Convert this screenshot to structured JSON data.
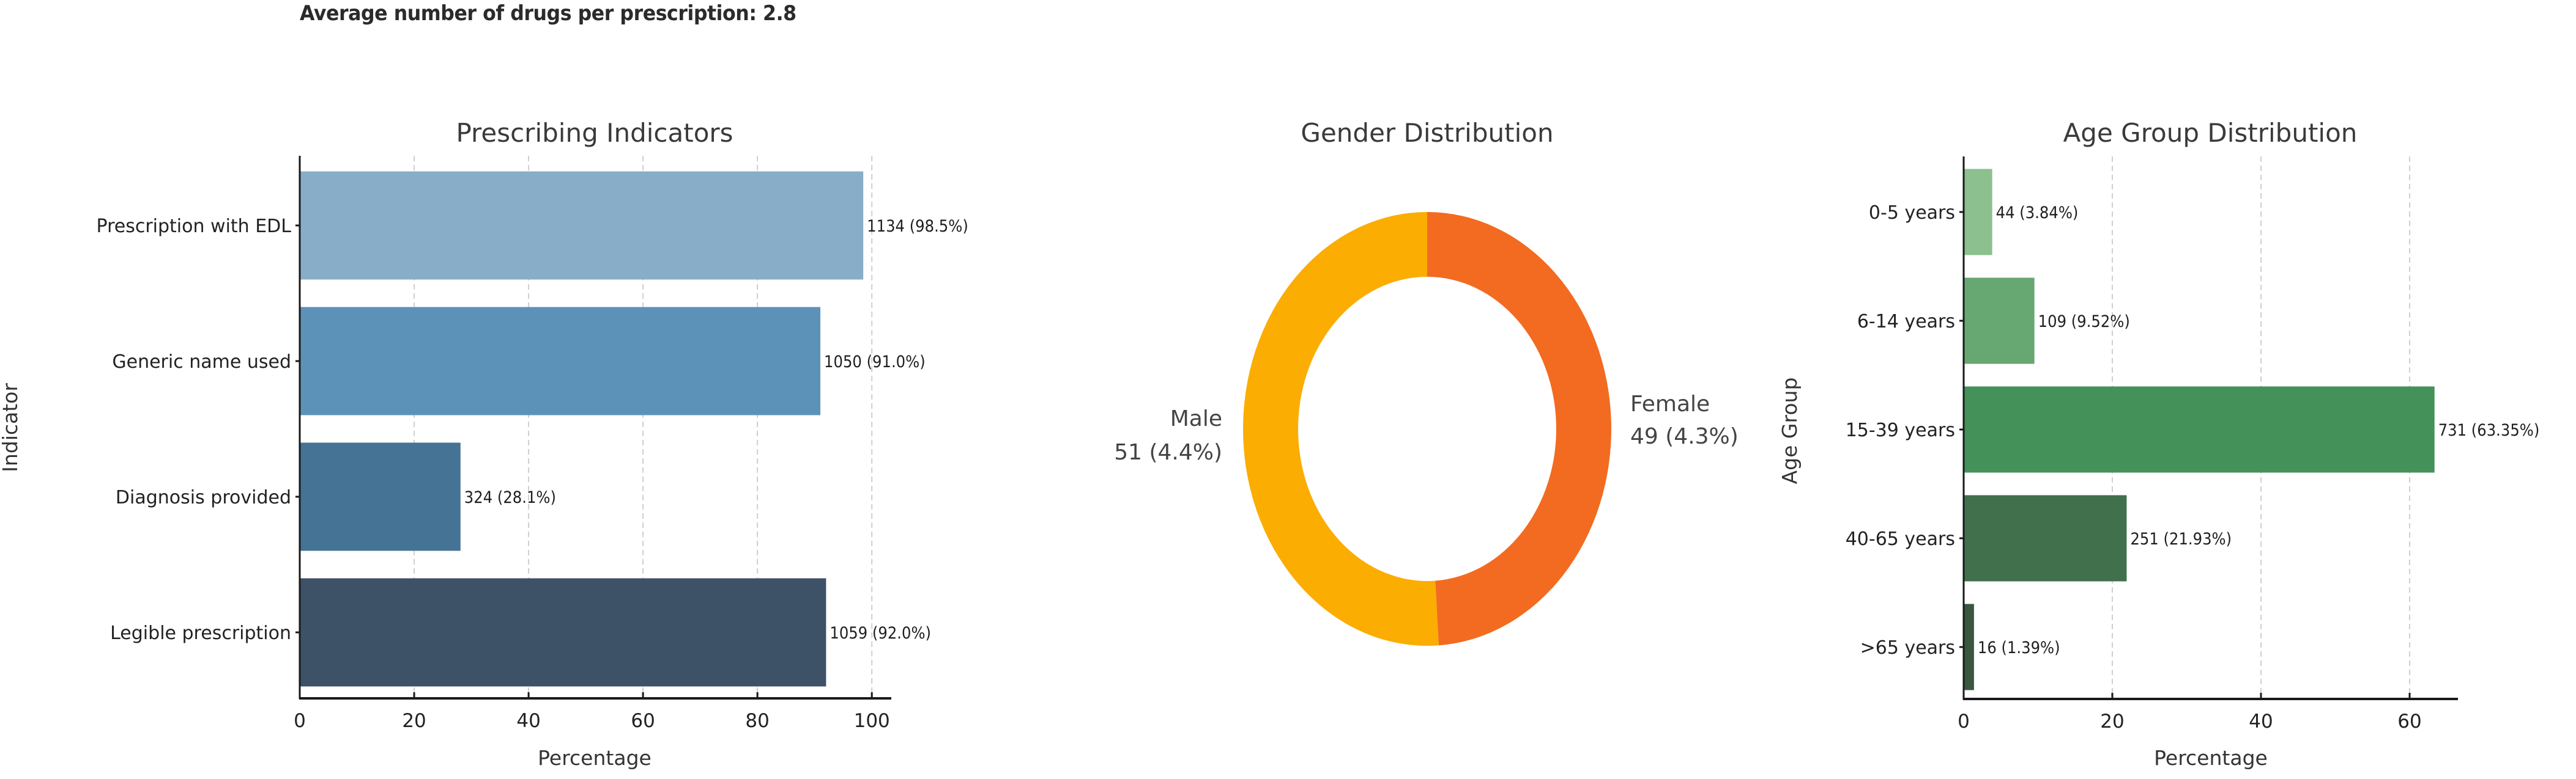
{
  "header": {
    "summary": "Average number of drugs per prescription: 2.8"
  },
  "colors": {
    "text_dark": "#333333",
    "axis": "#1a1a1a",
    "grid": "#cfcfcf"
  },
  "chart_data": [
    {
      "type": "bar",
      "orientation": "horizontal",
      "title": "Prescribing Indicators",
      "xlabel": "Percentage",
      "ylabel": "Indicator",
      "xlim": [
        0,
        103.4
      ],
      "xticks": [
        0,
        20,
        40,
        60,
        80,
        100
      ],
      "grid": "x-dashed",
      "categories": [
        "Prescription with EDL",
        "Generic name used",
        "Diagnosis provided",
        "Legible prescription"
      ],
      "counts": [
        1134,
        1050,
        324,
        1059
      ],
      "values": [
        98.5,
        91.0,
        28.1,
        92.0
      ],
      "labels": [
        "1134 (98.5%)",
        "1050 (91.0%)",
        "324 (28.1%)",
        "1059 (92.0%)"
      ],
      "colors": [
        "#88adc8",
        "#5d92b8",
        "#447395",
        "#3d5266"
      ]
    },
    {
      "type": "pie",
      "donut": true,
      "title": "Gender Distribution",
      "categories": [
        "Female",
        "Male"
      ],
      "values": [
        49,
        51
      ],
      "labels": [
        [
          "Female",
          "49 (4.3%)"
        ],
        [
          "Male",
          "51 (4.4%)"
        ]
      ],
      "colors": [
        "#f26b21",
        "#fbad02"
      ],
      "start_angle": "12 o'clock",
      "direction": "clockwise"
    },
    {
      "type": "bar",
      "orientation": "horizontal",
      "title": "Age Group Distribution",
      "xlabel": "Percentage",
      "ylabel": "Age Group",
      "xlim": [
        0,
        66.5
      ],
      "xticks": [
        0,
        20,
        40,
        60
      ],
      "grid": "x-dashed",
      "categories": [
        "0-5 years",
        "6-14 years",
        "15-39 years",
        "40-65 years",
        ">65 years"
      ],
      "counts": [
        44,
        109,
        731,
        251,
        16
      ],
      "values": [
        3.84,
        9.52,
        63.35,
        21.93,
        1.39
      ],
      "labels": [
        "44 (3.84%)",
        "109 (9.52%)",
        "731 (63.35%)",
        "251 (21.93%)",
        "16 (1.39%)"
      ],
      "colors": [
        "#8cc08f",
        "#67a772",
        "#44915a",
        "#40704c",
        "#39573f"
      ]
    }
  ]
}
